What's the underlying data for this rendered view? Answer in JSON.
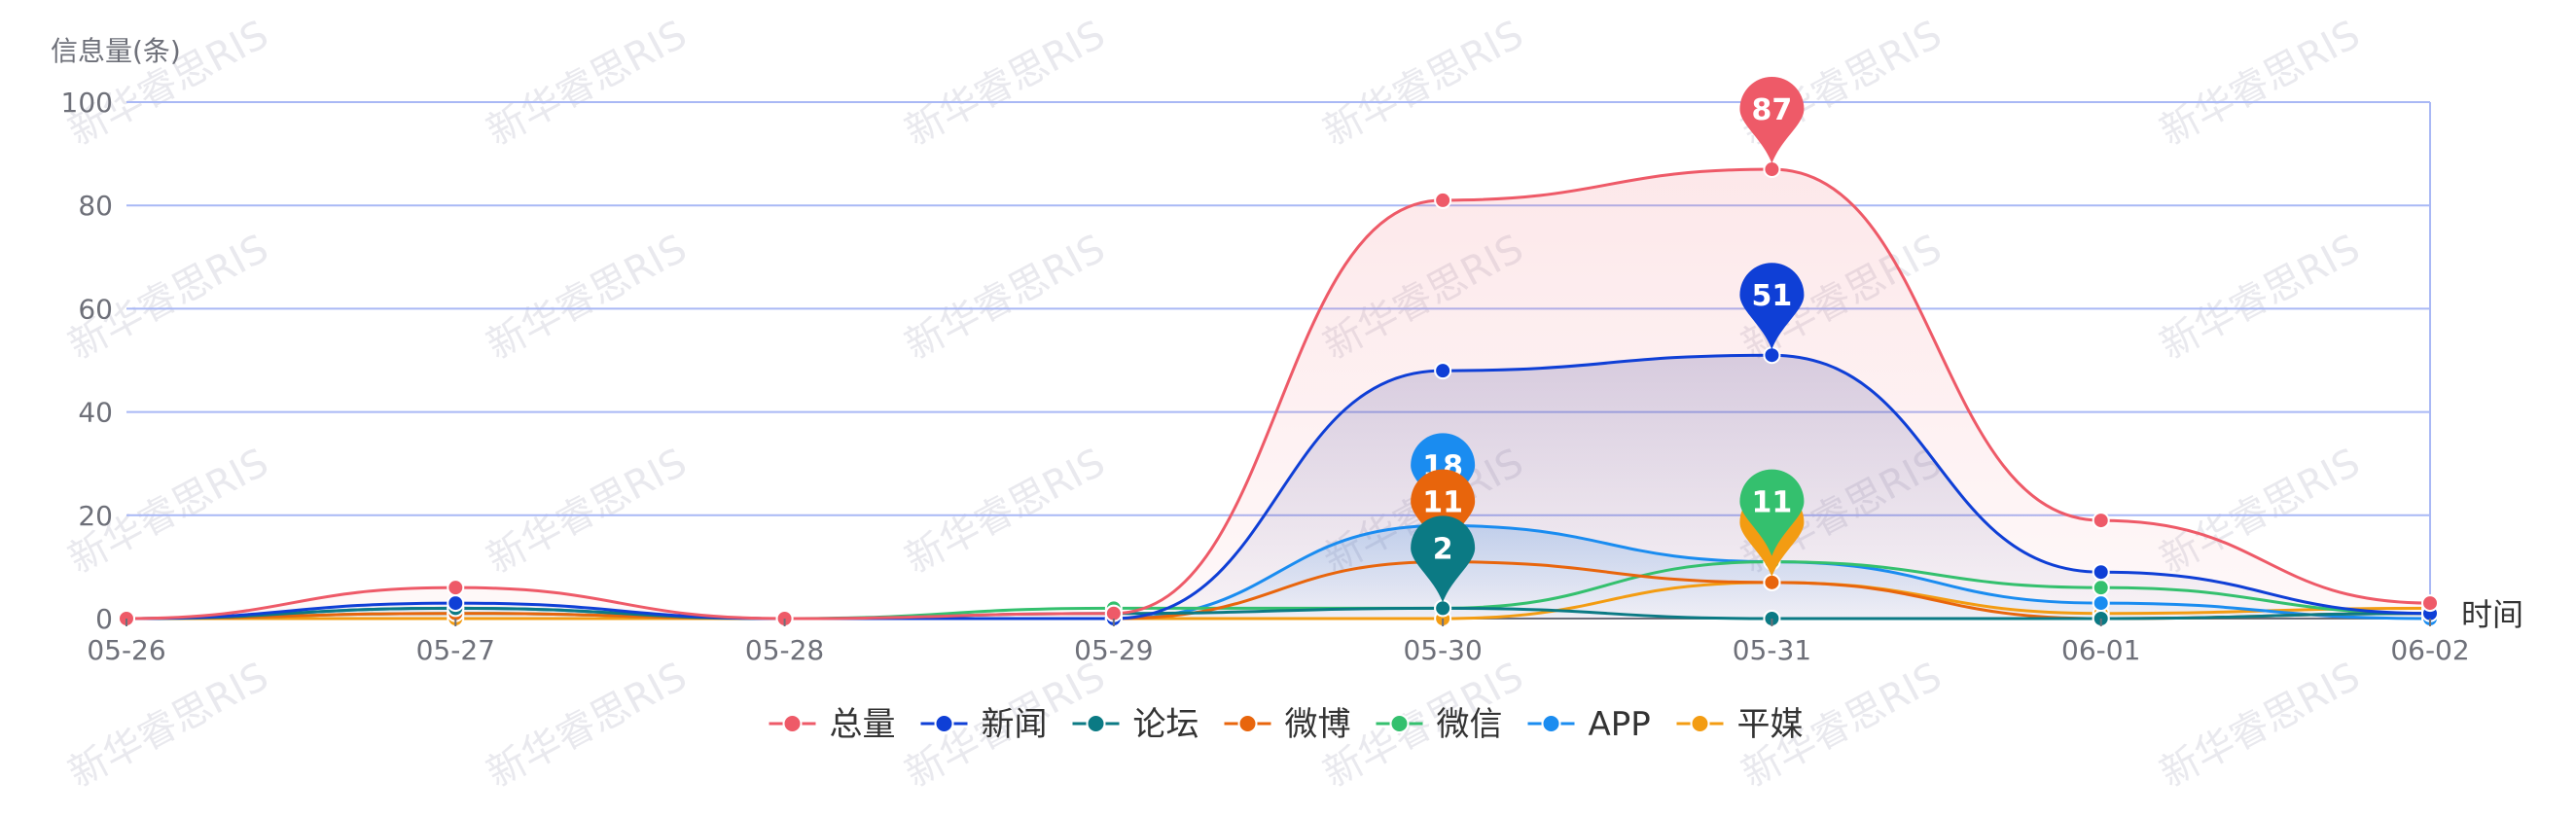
{
  "watermark_text": "新华睿思RIS",
  "chart_data": {
    "type": "line",
    "ylabel": "信息量(条)",
    "xlabel": "时间",
    "ylim": [
      0,
      100
    ],
    "yticks": [
      "0",
      "20",
      "40",
      "60",
      "80",
      "100"
    ],
    "categories": [
      "05-26",
      "05-27",
      "05-28",
      "05-29",
      "05-30",
      "05-31",
      "06-01",
      "06-02"
    ],
    "grid": true,
    "legend_position": "bottom-center",
    "series": [
      {
        "name": "总量",
        "color": "#ee5a68",
        "area": true,
        "values": [
          0,
          6,
          0,
          1,
          81,
          87,
          19,
          3
        ],
        "max_label": "87",
        "max_index": 5
      },
      {
        "name": "新闻",
        "color": "#0f3fd6",
        "area": true,
        "values": [
          0,
          3,
          0,
          0,
          48,
          51,
          9,
          1
        ],
        "max_label": "51",
        "max_index": 5
      },
      {
        "name": "论坛",
        "color": "#0b7a84",
        "area": false,
        "values": [
          0,
          2,
          0,
          1,
          2,
          0,
          0,
          1
        ],
        "max_label": "2",
        "max_index": 4
      },
      {
        "name": "微博",
        "color": "#e8650c",
        "area": false,
        "values": [
          0,
          1,
          0,
          0,
          11,
          7,
          0,
          1
        ],
        "max_label": "11",
        "max_index": 4
      },
      {
        "name": "微信",
        "color": "#34c06e",
        "area": false,
        "values": [
          0,
          1,
          0,
          2,
          2,
          11,
          6,
          1
        ],
        "max_label": "11",
        "max_index": 5
      },
      {
        "name": "APP",
        "color": "#1a8cf0",
        "area": true,
        "values": [
          0,
          2,
          0,
          0,
          18,
          11,
          3,
          0
        ],
        "max_label": "18",
        "max_index": 4
      },
      {
        "name": "平媒",
        "color": "#f39c12",
        "area": false,
        "values": [
          0,
          0,
          0,
          0,
          0,
          7,
          1,
          2
        ],
        "max_label": "7",
        "max_index": 5
      }
    ]
  }
}
